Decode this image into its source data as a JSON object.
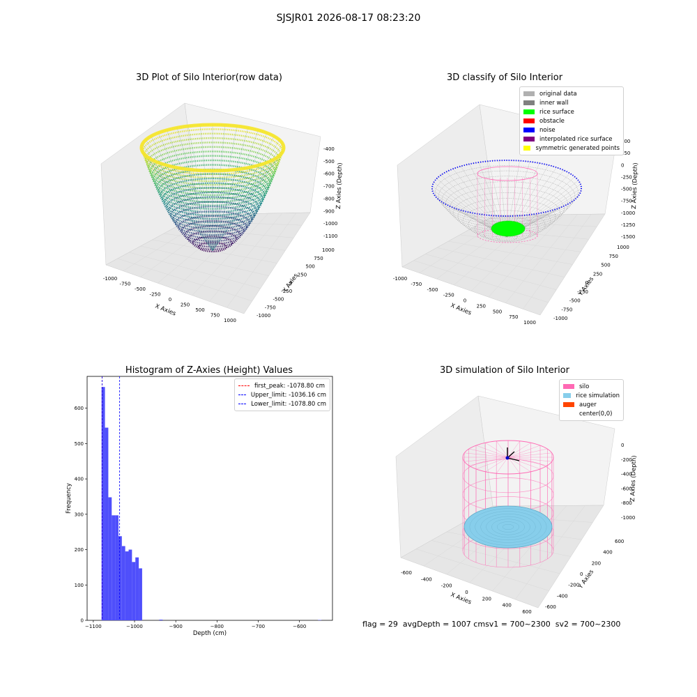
{
  "figure": {
    "suptitle": "SJSJR01 2026-08-17 08:23:20",
    "footer": {
      "flag": "flag = 29",
      "avg_depth": "avgDepth = 1007 cm",
      "sv1": "sv1 = 700~2300",
      "sv2": "sv2 = 700~2300"
    }
  },
  "colors": {
    "bars": "#4f4ffb",
    "first_peak": "#ff0000",
    "limits": "#0000ff",
    "silo": "#ff69b4",
    "rice_simulation": "#87ceeb",
    "auger": "#ff4500",
    "rice_surface": "#00ff00",
    "noise": "#0000ff",
    "inner_wall": "#808080"
  },
  "chart_data": [
    {
      "type": "scatter3d",
      "title": "3D Plot of Silo Interior(row data)",
      "xlabel": "X Axies",
      "ylabel": "Y Axies",
      "zlabel": "Z Axies (Depth)",
      "colormap": "viridis",
      "x_ticks": [
        "-1000",
        "-750",
        "-500",
        "-250",
        "0",
        "250",
        "500",
        "750",
        "1000"
      ],
      "y_ticks": [
        "-1000",
        "-750",
        "-500",
        "-250",
        "0",
        "250",
        "500",
        "750",
        "1000"
      ],
      "z_ticks": [
        "-400",
        "-500",
        "-600",
        "-700",
        "-800",
        "-900",
        "-1000",
        "-1100"
      ],
      "xlim": [
        -1000,
        1000
      ],
      "ylim": [
        -1000,
        1000
      ],
      "zlim": [
        -1100,
        -400
      ]
    },
    {
      "type": "scatter3d",
      "title": "3D classify of Silo Interior",
      "xlabel": "X Axies",
      "ylabel": "Y Axies",
      "zlabel": "Z Axies (Depth)",
      "x_ticks": [
        "-1000",
        "-750",
        "-500",
        "-250",
        "0",
        "250",
        "500",
        "750",
        "1000"
      ],
      "y_ticks": [
        "-1000",
        "-750",
        "-500",
        "-250",
        "0",
        "250",
        "500",
        "750",
        "1000"
      ],
      "z_ticks": [
        "500",
        "250",
        "0",
        "-250",
        "-500",
        "-750",
        "-1000",
        "-1250",
        "-1500"
      ],
      "legend": {
        "placement": "upper right",
        "items": [
          {
            "label": "original data",
            "color": "#b0b0b0"
          },
          {
            "label": "inner wall",
            "color": "#808080"
          },
          {
            "label": "rice surface",
            "color": "#00ff00"
          },
          {
            "label": "obstacle",
            "color": "#ff0000"
          },
          {
            "label": "noise",
            "color": "#0000ff"
          },
          {
            "label": "interpolated rice surface",
            "color": "#800080"
          },
          {
            "label": "symmetric generated points",
            "color": "#ffff00"
          }
        ]
      }
    },
    {
      "type": "bar",
      "title": "Histogram of Z-Axies (Height) Values",
      "xlabel": "Depth (cm)",
      "ylabel": "Frequency",
      "xlim": [
        -1115,
        -520
      ],
      "ylim": [
        0,
        690
      ],
      "x_ticks": [
        -1100,
        -1000,
        -900,
        -800,
        -700,
        -600
      ],
      "x_tick_labels": [
        "−1100",
        "−1000",
        "−900",
        "−800",
        "−700",
        "−600"
      ],
      "y_ticks": [
        0,
        100,
        200,
        300,
        400,
        500,
        600
      ],
      "bin_width": 8.2,
      "bins": [
        {
          "x0": -1080,
          "count": 660
        },
        {
          "x0": -1071.8,
          "count": 545
        },
        {
          "x0": -1063.6,
          "count": 348
        },
        {
          "x0": -1055.4,
          "count": 297
        },
        {
          "x0": -1047.2,
          "count": 297
        },
        {
          "x0": -1039,
          "count": 238
        },
        {
          "x0": -1030.8,
          "count": 210
        },
        {
          "x0": -1022.6,
          "count": 195
        },
        {
          "x0": -1014.4,
          "count": 200
        },
        {
          "x0": -1006.2,
          "count": 165
        },
        {
          "x0": -998,
          "count": 178
        },
        {
          "x0": -989.8,
          "count": 147
        },
        {
          "x0": -940,
          "count": 2
        },
        {
          "x0": -555,
          "count": 1
        }
      ],
      "lines": [
        {
          "name": "first_peak: -1078.80 cm",
          "x": -1078.8,
          "color": "#ff0000"
        },
        {
          "name": "Upper_limit: -1036.16 cm",
          "x": -1036.16,
          "color": "#0000ff"
        },
        {
          "name": "Lower_limit: -1078.80 cm",
          "x": -1078.8,
          "color": "#0000ff"
        }
      ],
      "legend_placement": "upper right"
    },
    {
      "type": "surface3d",
      "title": "3D simulation of Silo Interior",
      "xlabel": "X Axies",
      "ylabel": "Y Axies",
      "zlabel": "Z Axies (Depth)",
      "x_ticks": [
        "-600",
        "-400",
        "-200",
        "0",
        "200",
        "400",
        "600"
      ],
      "y_ticks": [
        "-600",
        "-400",
        "-200",
        "0",
        "200",
        "400",
        "600"
      ],
      "z_ticks": [
        "0",
        "-200",
        "-400",
        "-600",
        "-800",
        "-1000"
      ],
      "legend": {
        "placement": "upper right",
        "items": [
          {
            "label": "silo",
            "color": "#ff69b4"
          },
          {
            "label": "rice simulation",
            "color": "#87ceeb"
          },
          {
            "label": "auger",
            "color": "#ff4500"
          },
          {
            "label": "center(0,0)",
            "color": ""
          }
        ]
      }
    }
  ]
}
